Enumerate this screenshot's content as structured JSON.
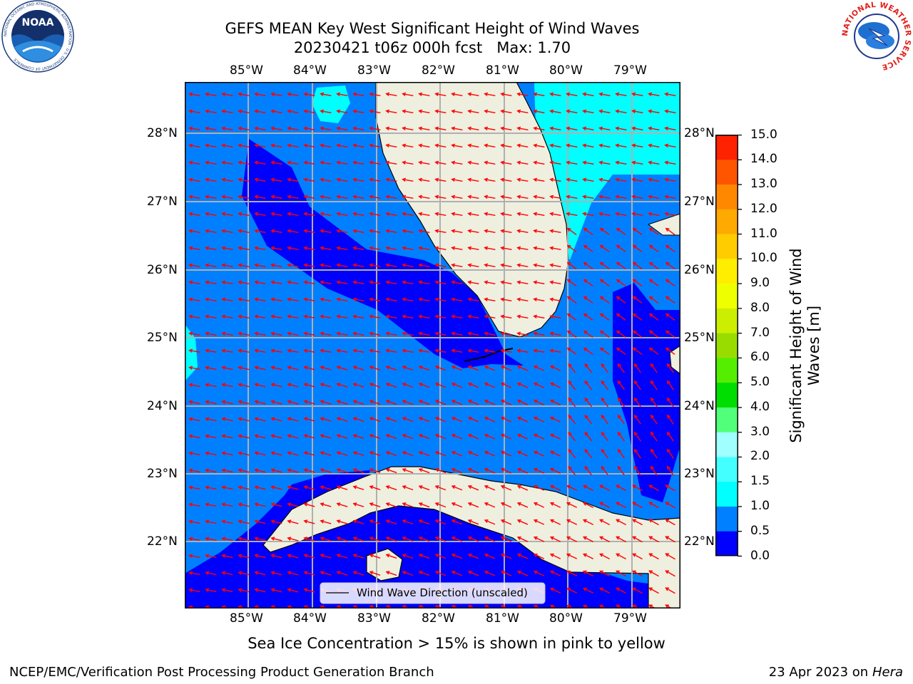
{
  "header": {
    "title_line1": "GEFS MEAN Key West Significant Height of Wind Waves",
    "title_line2": "20230421 t06z 000h fcst   Max: 1.70"
  },
  "map": {
    "lon_labels": [
      "85°W",
      "84°W",
      "83°W",
      "82°W",
      "81°W",
      "80°W",
      "79°W"
    ],
    "lat_labels": [
      "28°N",
      "27°N",
      "26°N",
      "25°N",
      "24°N",
      "23°N",
      "22°N"
    ],
    "legend_label": "Wind Wave Direction (unscaled)",
    "colors": {
      "ocean_dark": "#0000ff",
      "ocean_mid": "#0080ff",
      "ocean_light": "#00ffff",
      "land": "#efefdf",
      "arrow": "#ff0000",
      "grid": "#b0b0b0"
    }
  },
  "colorbar": {
    "ticks": [
      "0.0",
      "0.5",
      "1.0",
      "1.5",
      "2.0",
      "3.0",
      "4.0",
      "5.0",
      "6.0",
      "7.0",
      "8.0",
      "9.0",
      "10.0",
      "11.0",
      "12.0",
      "13.0",
      "14.0",
      "15.0"
    ],
    "colors": [
      "#0000ff",
      "#0080ff",
      "#00ffff",
      "#44ffff",
      "#a0ffff",
      "#52ff7a",
      "#00dd00",
      "#55ee00",
      "#99dd00",
      "#ccee00",
      "#eeff00",
      "#ffee00",
      "#ffcc00",
      "#ffaa00",
      "#ff8800",
      "#ff5500",
      "#ff2200"
    ],
    "label_line1": "Significant Height of Wind",
    "label_line2": "Waves [m]"
  },
  "logos": {
    "noaa_text": "NOAA",
    "noaa_ring": "NATIONAL OCEANIC AND ATMOSPHERIC ADMINISTRATION · U.S. DEPARTMENT OF COMMERCE",
    "nws_ring": "NATIONAL WEATHER SERVICE"
  },
  "footer": {
    "sea_ice_note": "Sea Ice Concentration > 15% is shown in pink to yellow",
    "credit": "NCEP/EMC/Verification Post Processing Product Generation Branch",
    "date": "23 Apr 2023 on ",
    "host": "Hera"
  }
}
